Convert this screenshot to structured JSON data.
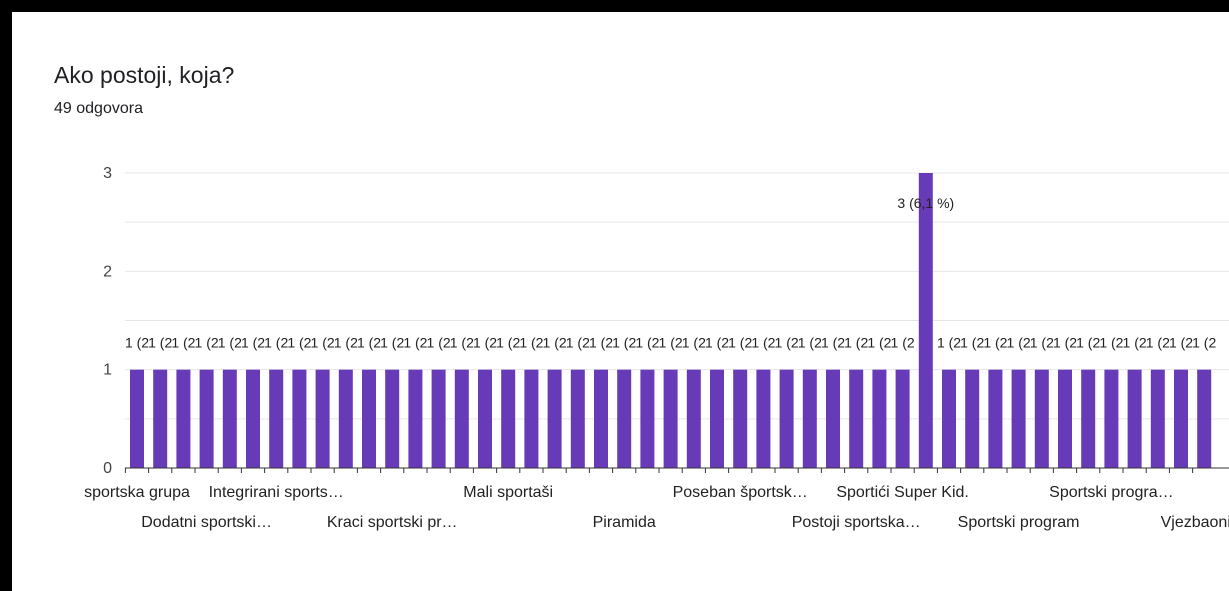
{
  "question": {
    "title": "Ako postoji, koja?",
    "responses": "49 odgovora"
  },
  "colors": {
    "bar": "#673ab7",
    "grid": "#e6e6e6",
    "axis": "#333333"
  },
  "chart_data": {
    "type": "bar",
    "ylim": [
      0,
      3
    ],
    "yticks": [
      0,
      1,
      2,
      3
    ],
    "grid": true,
    "values": [
      1,
      1,
      1,
      1,
      1,
      1,
      1,
      1,
      1,
      1,
      1,
      1,
      1,
      1,
      1,
      1,
      1,
      1,
      1,
      1,
      1,
      1,
      1,
      1,
      1,
      1,
      1,
      1,
      1,
      1,
      1,
      1,
      1,
      1,
      3,
      1,
      1,
      1,
      1,
      1,
      1,
      1,
      1,
      1,
      1,
      1,
      1
    ],
    "value_labels": [
      "1 (2",
      "1 (2",
      "1 (2",
      "1 (2",
      "1 (2",
      "1 (2",
      "1 (2",
      "1 (2",
      "1 (2",
      "1 (2",
      "1 (2",
      "1 (2",
      "1 (2",
      "1 (2",
      "1 (2",
      "1 (2",
      "1 (2",
      "1 (2",
      "1 (2",
      "1 (2",
      "1 (2",
      "1 (2",
      "1 (2",
      "1 (2",
      "1 (2",
      "1 (2",
      "1 (2",
      "1 (2",
      "1 (2",
      "1 (2",
      "1 (2",
      "1 (2",
      "1 (2",
      "1 (2",
      "3 (6,1 %)",
      "1 (2",
      "1 (2",
      "1 (2",
      "1 (2",
      "1 (2",
      "1 (2",
      "1 (2",
      "1 (2",
      "1 (2",
      "1 (2",
      "1 (2",
      "1 (2"
    ],
    "x_labels_row1": [
      {
        "index": 0,
        "text": "sportska grupa"
      },
      {
        "index": 6,
        "text": "Integrirani sports…"
      },
      {
        "index": 16,
        "text": "Mali sportaši"
      },
      {
        "index": 26,
        "text": "Poseban športsk…"
      },
      {
        "index": 33,
        "text": "Sportići Super Kid."
      },
      {
        "index": 42,
        "text": "Sportski progra…"
      }
    ],
    "x_labels_row2": [
      {
        "index": 3,
        "text": "Dodatni sportski…"
      },
      {
        "index": 11,
        "text": "Kraci sportski pr…"
      },
      {
        "index": 21,
        "text": "Piramida"
      },
      {
        "index": 31,
        "text": "Postoji sportska…"
      },
      {
        "index": 38,
        "text": "Sportski program"
      },
      {
        "index": 46,
        "text": "Vjezbaonica"
      }
    ]
  }
}
